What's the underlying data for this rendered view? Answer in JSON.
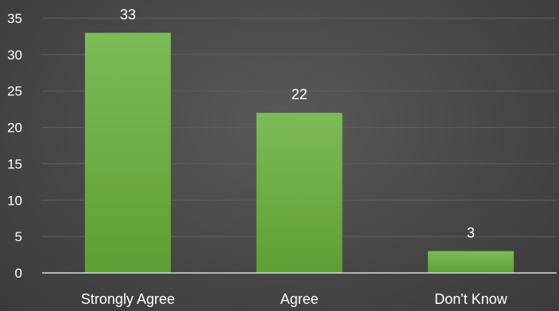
{
  "chart_data": {
    "type": "bar",
    "categories": [
      "Strongly Agree",
      "Agree",
      "Don't Know"
    ],
    "values": [
      33,
      22,
      3
    ],
    "data_labels": [
      "33",
      "22",
      "3"
    ],
    "y_ticks": [
      "0",
      "5",
      "10",
      "15",
      "20",
      "25",
      "30",
      "35"
    ],
    "title": "",
    "xlabel": "",
    "ylabel": "",
    "ylim": [
      0,
      35
    ],
    "grid": true,
    "legend": "none"
  },
  "colors": {
    "bar_top": "#7cbb57",
    "bar_bottom": "#5e9f33",
    "gridline": "#5f5f5f",
    "axis": "#d9d9d9",
    "text": "#ffffff"
  }
}
